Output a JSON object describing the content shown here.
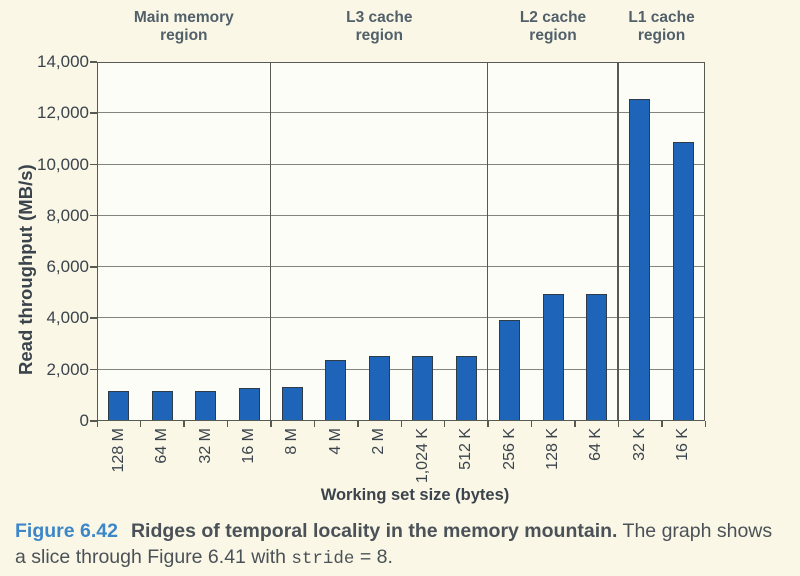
{
  "chart": {
    "regions": [
      {
        "line1": "Main memory",
        "line2": "region",
        "span": [
          0,
          4
        ]
      },
      {
        "line1": "L3 cache",
        "line2": "region",
        "span": [
          4,
          9
        ]
      },
      {
        "line1": "L2 cache",
        "line2": "region",
        "span": [
          9,
          12
        ]
      },
      {
        "line1": "L1 cache",
        "line2": "region",
        "span": [
          12,
          14
        ]
      }
    ],
    "colors": {
      "bar_fill": "#1e64b9",
      "bar_border": "#2e3c48",
      "gridline": "#83847b",
      "frame": "#565a52",
      "region_header_text": "#52606a",
      "axis_text": "#3b444c",
      "figure_label_blue": "#3d86c8",
      "page_background": "#faf7e7"
    }
  },
  "chart_data": {
    "type": "bar",
    "categories": [
      "128 M",
      "64 M",
      "32 M",
      "16 M",
      "8 M",
      "4 M",
      "2 M",
      "1,024 K",
      "512 K",
      "256 K",
      "128 K",
      "64 K",
      "32 K",
      "16 K"
    ],
    "values": [
      1150,
      1150,
      1150,
      1250,
      1300,
      2350,
      2500,
      2500,
      2500,
      3900,
      4900,
      4900,
      12500,
      10850
    ],
    "title": "",
    "xlabel": "Working set size (bytes)",
    "ylabel": "Read throughput (MB/s)",
    "ylim": [
      0,
      14000
    ],
    "ytick_step": 2000,
    "ytick_labels": [
      "0",
      "2,000",
      "4,000",
      "6,000",
      "8,000",
      "10,000",
      "12,000",
      "14,000"
    ],
    "region_dividers_after_index": [
      3,
      8,
      11
    ],
    "grid": "on",
    "legend": "none"
  },
  "caption": {
    "figure_label": "Figure 6.42",
    "title_bold": "Ridges of temporal locality in the memory mountain.",
    "line1_rest": "The graph shows",
    "line2_before_code": "a slice through Figure 6.41 with ",
    "code_text": "stride",
    "line2_after_code": " = 8."
  }
}
